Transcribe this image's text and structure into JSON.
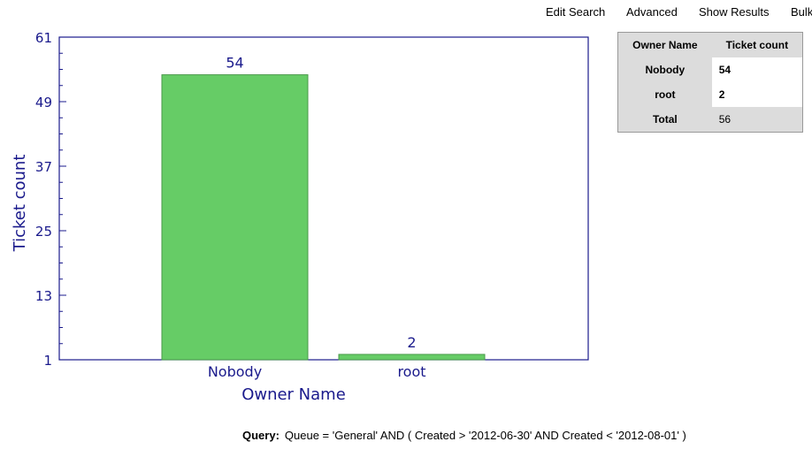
{
  "nav": {
    "items": [
      "Edit Search",
      "Advanced",
      "Show Results",
      "Bulk"
    ]
  },
  "chart_data": {
    "type": "bar",
    "categories": [
      "Nobody",
      "root"
    ],
    "values": [
      54,
      2
    ],
    "data_labels": [
      "54",
      "2"
    ],
    "xlabel": "Owner Name",
    "ylabel": "Ticket count",
    "ylim": [
      1,
      61
    ],
    "yticks": [
      1,
      13,
      25,
      37,
      49,
      61
    ],
    "bar_color": "#66cc66",
    "axis_color": "#1a1a8c"
  },
  "summary": {
    "headers": [
      "Owner Name",
      "Ticket count"
    ],
    "rows": [
      {
        "name": "Nobody",
        "count": "54"
      },
      {
        "name": "root",
        "count": "2"
      }
    ],
    "total_label": "Total",
    "total_value": "56"
  },
  "query": {
    "label": "Query:",
    "text": "Queue = 'General' AND ( Created > '2012-06-30' AND Created < '2012-08-01' )"
  }
}
